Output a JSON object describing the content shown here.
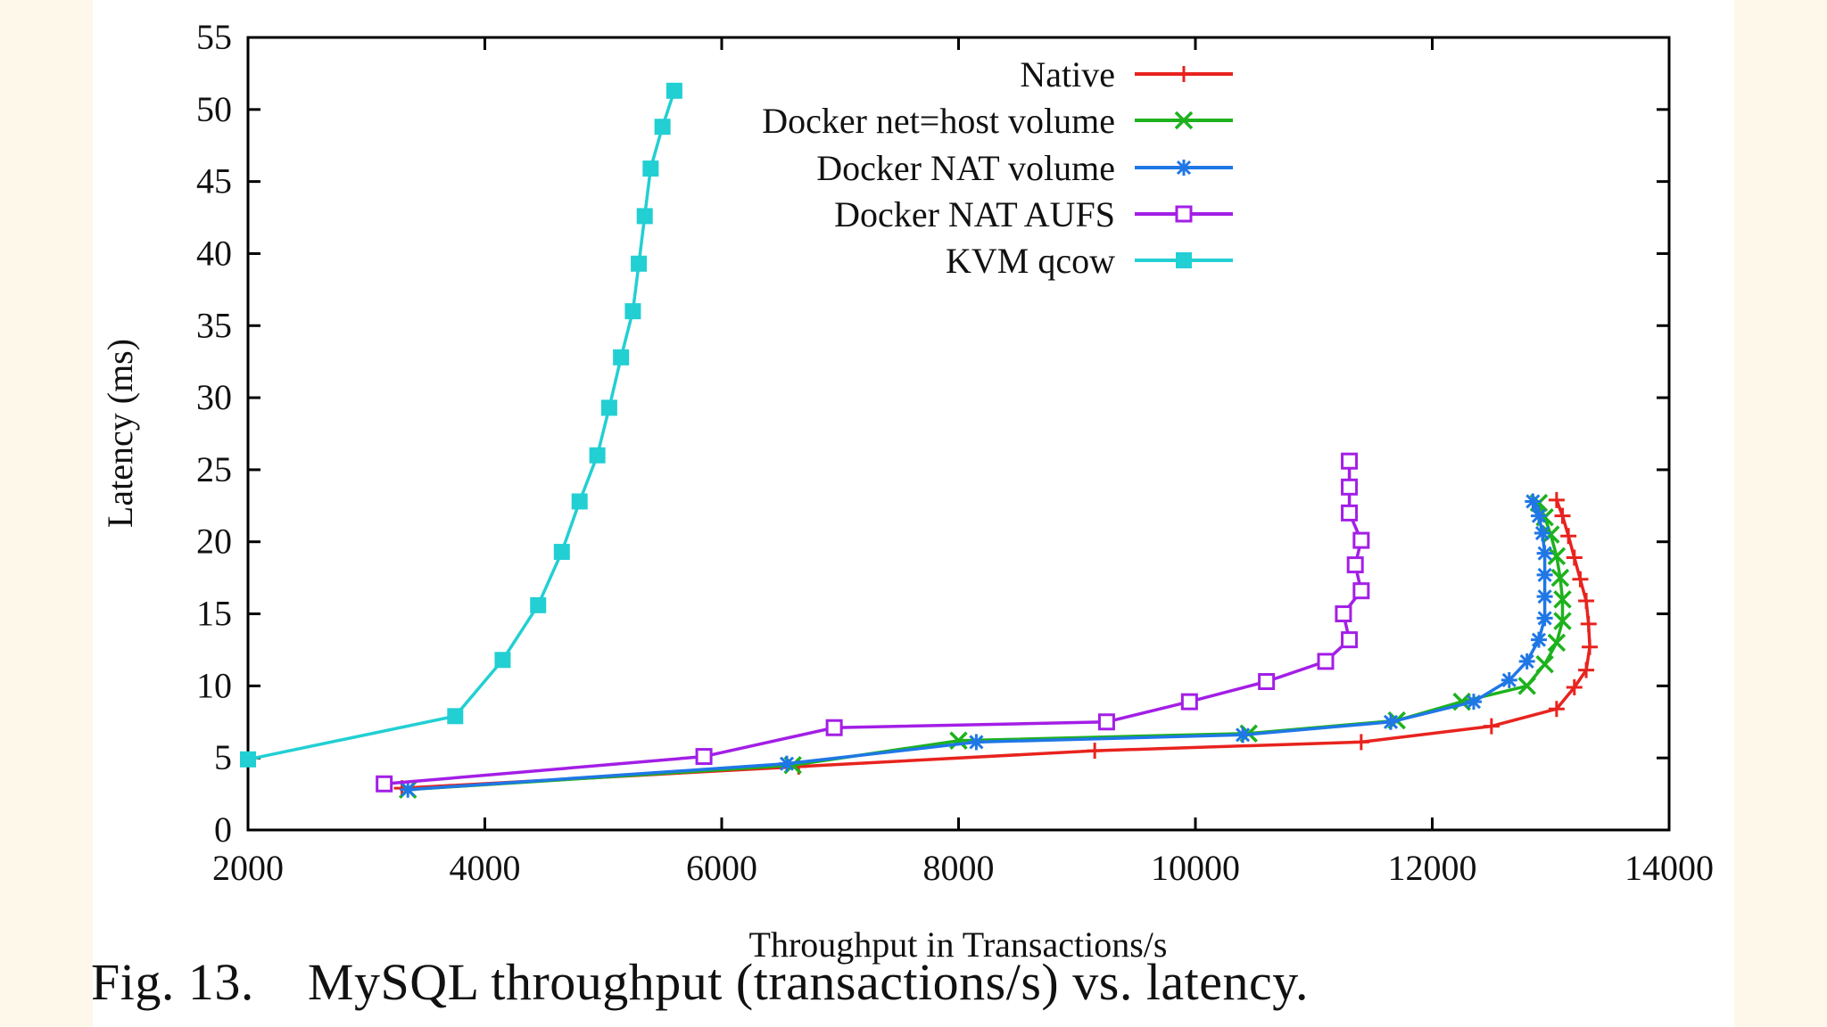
{
  "caption": "Fig. 13.    MySQL throughput (transactions/s) vs. latency.",
  "chart_data": {
    "type": "line",
    "title": "",
    "xlabel": "Throughput in Transactions/s",
    "ylabel": "Latency (ms)",
    "xlim": [
      2000,
      14000
    ],
    "ylim": [
      0,
      55
    ],
    "xticks": [
      2000,
      4000,
      6000,
      8000,
      10000,
      12000,
      14000
    ],
    "yticks": [
      0,
      5,
      10,
      15,
      20,
      25,
      30,
      35,
      40,
      45,
      50,
      55
    ],
    "legend_position": "top-right",
    "series": [
      {
        "name": "Native",
        "color": "#e8231e",
        "marker": "plus",
        "x": [
          3300,
          6650,
          9150,
          11400,
          12500,
          13050,
          13200,
          13300,
          13330,
          13320,
          13300,
          13250,
          13200,
          13150,
          13100,
          13050
        ],
        "y": [
          2.9,
          4.4,
          5.5,
          6.1,
          7.2,
          8.4,
          9.9,
          11.1,
          12.7,
          14.3,
          15.9,
          17.4,
          18.9,
          20.4,
          21.8,
          22.9
        ]
      },
      {
        "name": "Docker net=host volume",
        "color": "#1db21d",
        "marker": "x",
        "x": [
          3350,
          6600,
          8000,
          10450,
          11700,
          12250,
          12800,
          12950,
          13050,
          13100,
          13100,
          13080,
          13050,
          13000,
          12950,
          12900
        ],
        "y": [
          2.8,
          4.5,
          6.2,
          6.7,
          7.6,
          8.9,
          10.0,
          11.5,
          13.0,
          14.5,
          16.0,
          17.5,
          19.0,
          20.5,
          21.7,
          22.7
        ]
      },
      {
        "name": "Docker NAT volume",
        "color": "#1f77e6",
        "marker": "star",
        "x": [
          3350,
          6550,
          8150,
          10400,
          11650,
          12350,
          12650,
          12800,
          12900,
          12950,
          12950,
          12950,
          12950,
          12930,
          12900,
          12850
        ],
        "y": [
          2.8,
          4.6,
          6.1,
          6.6,
          7.5,
          8.9,
          10.4,
          11.7,
          13.2,
          14.7,
          16.2,
          17.7,
          19.2,
          20.6,
          21.8,
          22.8
        ]
      },
      {
        "name": "Docker NAT AUFS",
        "color": "#a31ee6",
        "marker": "square-open",
        "x": [
          3150,
          5850,
          6950,
          9250,
          9950,
          10600,
          11100,
          11300,
          11250,
          11400,
          11350,
          11400,
          11300,
          11300,
          11300
        ],
        "y": [
          3.2,
          5.1,
          7.1,
          7.5,
          8.9,
          10.3,
          11.7,
          13.2,
          15.0,
          16.6,
          18.4,
          20.1,
          22.0,
          23.8,
          25.6
        ]
      },
      {
        "name": "KVM qcow",
        "color": "#22cfd3",
        "marker": "square-filled",
        "x": [
          2000,
          3750,
          4150,
          4450,
          4650,
          4800,
          4950,
          5050,
          5150,
          5250,
          5300,
          5350,
          5400,
          5500,
          5600
        ],
        "y": [
          4.9,
          7.9,
          11.8,
          15.6,
          19.3,
          22.8,
          26.0,
          29.3,
          32.8,
          36.0,
          39.3,
          42.6,
          45.9,
          48.8,
          51.3
        ]
      }
    ]
  }
}
